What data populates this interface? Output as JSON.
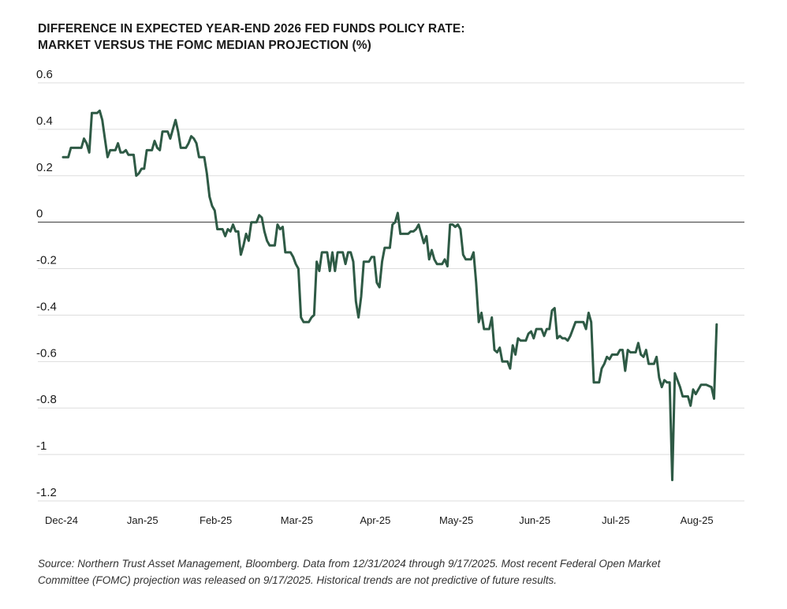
{
  "title_lines": [
    "DIFFERENCE IN EXPECTED YEAR-END 2026 FED FUNDS POLICY RATE:",
    "MARKET VERSUS THE FOMC MEDIAN PROJECTION (%)"
  ],
  "source_lines": [
    "Source: Northern Trust Asset Management, Bloomberg. Data from 12/31/2024 through 9/17/2025. Most recent Federal Open Market",
    "Committee (FOMC) projection was released on 9/17/2025. Historical trends are not predictive of future results."
  ],
  "colors": {
    "line": "#2e5a45",
    "grid": "#dddddd",
    "zero_line": "#333333"
  },
  "chart_data": {
    "type": "line",
    "title": "DIFFERENCE IN EXPECTED YEAR-END 2026 FED FUNDS POLICY RATE: MARKET VERSUS THE FOMC MEDIAN PROJECTION (%)",
    "xlabel": "",
    "ylabel": "",
    "ylim": [
      -1.2,
      0.6
    ],
    "yticks": [
      "0.6",
      "0.4",
      "0.2",
      "0",
      "-0.2",
      "-0.4",
      "-0.6",
      "-0.8",
      "-1",
      "-1.2"
    ],
    "ytick_values": [
      0.6,
      0.4,
      0.2,
      0,
      -0.2,
      -0.4,
      -0.6,
      -0.8,
      -1,
      -1.2
    ],
    "xticks": [
      "Dec-24",
      "Jan-25",
      "Feb-25",
      "Mar-25",
      "Apr-25",
      "May-25",
      "Jun-25",
      "Jul-25",
      "Aug-25"
    ],
    "xtick_dates": [
      "2024-12-31",
      "2025-01-31",
      "2025-02-28",
      "2025-03-31",
      "2025-04-30",
      "2025-05-31",
      "2025-06-30",
      "2025-07-31",
      "2025-08-31"
    ],
    "xlim": [
      "2024-12-31",
      "2025-09-17"
    ],
    "grid": true,
    "series": [
      {
        "name": "",
        "points": [
          [
            "2024-12-31",
            0.28
          ],
          [
            "2025-01-01",
            0.28
          ],
          [
            "2025-01-02",
            0.28
          ],
          [
            "2025-01-03",
            0.32
          ],
          [
            "2025-01-05",
            0.32
          ],
          [
            "2025-01-07",
            0.32
          ],
          [
            "2025-01-08",
            0.36
          ],
          [
            "2025-01-09",
            0.34
          ],
          [
            "2025-01-10",
            0.3
          ],
          [
            "2025-01-11",
            0.47
          ],
          [
            "2025-01-12",
            0.47
          ],
          [
            "2025-01-13",
            0.47
          ],
          [
            "2025-01-14",
            0.48
          ],
          [
            "2025-01-15",
            0.44
          ],
          [
            "2025-01-16",
            0.36
          ],
          [
            "2025-01-17",
            0.28
          ],
          [
            "2025-01-18",
            0.31
          ],
          [
            "2025-01-20",
            0.31
          ],
          [
            "2025-01-21",
            0.34
          ],
          [
            "2025-01-22",
            0.3
          ],
          [
            "2025-01-23",
            0.3
          ],
          [
            "2025-01-24",
            0.31
          ],
          [
            "2025-01-25",
            0.29
          ],
          [
            "2025-01-27",
            0.29
          ],
          [
            "2025-01-28",
            0.2
          ],
          [
            "2025-01-29",
            0.21
          ],
          [
            "2025-01-30",
            0.23
          ],
          [
            "2025-01-31",
            0.23
          ],
          [
            "2025-02-01",
            0.31
          ],
          [
            "2025-02-02",
            0.31
          ],
          [
            "2025-02-03",
            0.31
          ],
          [
            "2025-02-04",
            0.35
          ],
          [
            "2025-02-05",
            0.32
          ],
          [
            "2025-02-06",
            0.31
          ],
          [
            "2025-02-07",
            0.39
          ],
          [
            "2025-02-08",
            0.39
          ],
          [
            "2025-02-09",
            0.39
          ],
          [
            "2025-02-10",
            0.36
          ],
          [
            "2025-02-11",
            0.4
          ],
          [
            "2025-02-12",
            0.44
          ],
          [
            "2025-02-13",
            0.39
          ],
          [
            "2025-02-14",
            0.32
          ],
          [
            "2025-02-15",
            0.32
          ],
          [
            "2025-02-16",
            0.32
          ],
          [
            "2025-02-17",
            0.34
          ],
          [
            "2025-02-18",
            0.37
          ],
          [
            "2025-02-19",
            0.36
          ],
          [
            "2025-02-20",
            0.34
          ],
          [
            "2025-02-21",
            0.28
          ],
          [
            "2025-02-23",
            0.28
          ],
          [
            "2025-02-24",
            0.21
          ],
          [
            "2025-02-25",
            0.11
          ],
          [
            "2025-02-26",
            0.07
          ],
          [
            "2025-02-27",
            0.05
          ],
          [
            "2025-02-28",
            -0.03
          ],
          [
            "2025-03-01",
            -0.03
          ],
          [
            "2025-03-02",
            -0.03
          ],
          [
            "2025-03-03",
            -0.06
          ],
          [
            "2025-03-04",
            -0.03
          ],
          [
            "2025-03-05",
            -0.04
          ],
          [
            "2025-03-06",
            -0.01
          ],
          [
            "2025-03-07",
            -0.04
          ],
          [
            "2025-03-08",
            -0.04
          ],
          [
            "2025-03-09",
            -0.14
          ],
          [
            "2025-03-10",
            -0.1
          ],
          [
            "2025-03-11",
            -0.05
          ],
          [
            "2025-03-12",
            -0.08
          ],
          [
            "2025-03-13",
            0.0
          ],
          [
            "2025-03-14",
            0.0
          ],
          [
            "2025-03-15",
            0.0
          ],
          [
            "2025-03-16",
            0.03
          ],
          [
            "2025-03-17",
            0.02
          ],
          [
            "2025-03-18",
            -0.04
          ],
          [
            "2025-03-19",
            -0.08
          ],
          [
            "2025-03-20",
            -0.1
          ],
          [
            "2025-03-21",
            -0.1
          ],
          [
            "2025-03-22",
            -0.1
          ],
          [
            "2025-03-23",
            -0.01
          ],
          [
            "2025-03-24",
            -0.03
          ],
          [
            "2025-03-25",
            -0.02
          ],
          [
            "2025-03-26",
            -0.13
          ],
          [
            "2025-03-27",
            -0.13
          ],
          [
            "2025-03-28",
            -0.13
          ],
          [
            "2025-03-29",
            -0.15
          ],
          [
            "2025-03-30",
            -0.18
          ],
          [
            "2025-03-31",
            -0.2
          ],
          [
            "2025-04-01",
            -0.41
          ],
          [
            "2025-04-02",
            -0.43
          ],
          [
            "2025-04-03",
            -0.43
          ],
          [
            "2025-04-04",
            -0.43
          ],
          [
            "2025-04-05",
            -0.41
          ],
          [
            "2025-04-06",
            -0.4
          ],
          [
            "2025-04-07",
            -0.17
          ],
          [
            "2025-04-08",
            -0.21
          ],
          [
            "2025-04-09",
            -0.13
          ],
          [
            "2025-04-10",
            -0.13
          ],
          [
            "2025-04-11",
            -0.13
          ],
          [
            "2025-04-12",
            -0.21
          ],
          [
            "2025-04-13",
            -0.13
          ],
          [
            "2025-04-14",
            -0.21
          ],
          [
            "2025-04-15",
            -0.13
          ],
          [
            "2025-04-16",
            -0.13
          ],
          [
            "2025-04-17",
            -0.13
          ],
          [
            "2025-04-18",
            -0.18
          ],
          [
            "2025-04-19",
            -0.13
          ],
          [
            "2025-04-20",
            -0.13
          ],
          [
            "2025-04-21",
            -0.17
          ],
          [
            "2025-04-22",
            -0.34
          ],
          [
            "2025-04-23",
            -0.41
          ],
          [
            "2025-04-24",
            -0.32
          ],
          [
            "2025-04-25",
            -0.17
          ],
          [
            "2025-04-26",
            -0.17
          ],
          [
            "2025-04-27",
            -0.17
          ],
          [
            "2025-04-28",
            -0.15
          ],
          [
            "2025-04-29",
            -0.15
          ],
          [
            "2025-04-30",
            -0.26
          ],
          [
            "2025-05-01",
            -0.28
          ],
          [
            "2025-05-02",
            -0.17
          ],
          [
            "2025-05-03",
            -0.11
          ],
          [
            "2025-05-04",
            -0.11
          ],
          [
            "2025-05-05",
            -0.11
          ],
          [
            "2025-05-06",
            -0.01
          ],
          [
            "2025-05-07",
            0.0
          ],
          [
            "2025-05-08",
            0.04
          ],
          [
            "2025-05-09",
            -0.05
          ],
          [
            "2025-05-10",
            -0.05
          ],
          [
            "2025-05-11",
            -0.05
          ],
          [
            "2025-05-12",
            -0.05
          ],
          [
            "2025-05-13",
            -0.04
          ],
          [
            "2025-05-14",
            -0.04
          ],
          [
            "2025-05-15",
            -0.03
          ],
          [
            "2025-05-16",
            -0.01
          ],
          [
            "2025-05-17",
            -0.05
          ],
          [
            "2025-05-18",
            -0.09
          ],
          [
            "2025-05-19",
            -0.06
          ],
          [
            "2025-05-20",
            -0.16
          ],
          [
            "2025-05-21",
            -0.12
          ],
          [
            "2025-05-22",
            -0.16
          ],
          [
            "2025-05-23",
            -0.18
          ],
          [
            "2025-05-24",
            -0.18
          ],
          [
            "2025-05-25",
            -0.18
          ],
          [
            "2025-05-26",
            -0.16
          ],
          [
            "2025-05-27",
            -0.19
          ],
          [
            "2025-05-28",
            -0.01
          ],
          [
            "2025-05-29",
            -0.01
          ],
          [
            "2025-05-30",
            -0.02
          ],
          [
            "2025-05-31",
            -0.01
          ],
          [
            "2025-06-01",
            -0.03
          ],
          [
            "2025-06-02",
            -0.14
          ],
          [
            "2025-06-03",
            -0.16
          ],
          [
            "2025-06-04",
            -0.16
          ],
          [
            "2025-06-05",
            -0.16
          ],
          [
            "2025-06-06",
            -0.13
          ],
          [
            "2025-06-07",
            -0.26
          ],
          [
            "2025-06-08",
            -0.43
          ],
          [
            "2025-06-09",
            -0.39
          ],
          [
            "2025-06-10",
            -0.46
          ],
          [
            "2025-06-11",
            -0.46
          ],
          [
            "2025-06-12",
            -0.46
          ],
          [
            "2025-06-13",
            -0.41
          ],
          [
            "2025-06-14",
            -0.55
          ],
          [
            "2025-06-15",
            -0.56
          ],
          [
            "2025-06-16",
            -0.54
          ],
          [
            "2025-06-17",
            -0.6
          ],
          [
            "2025-06-18",
            -0.6
          ],
          [
            "2025-06-19",
            -0.6
          ],
          [
            "2025-06-20",
            -0.63
          ],
          [
            "2025-06-21",
            -0.53
          ],
          [
            "2025-06-22",
            -0.57
          ],
          [
            "2025-06-23",
            -0.5
          ],
          [
            "2025-06-24",
            -0.51
          ],
          [
            "2025-06-25",
            -0.51
          ],
          [
            "2025-06-26",
            -0.51
          ],
          [
            "2025-06-27",
            -0.48
          ],
          [
            "2025-06-28",
            -0.47
          ],
          [
            "2025-06-29",
            -0.5
          ],
          [
            "2025-06-30",
            -0.46
          ],
          [
            "2025-07-01",
            -0.46
          ],
          [
            "2025-07-02",
            -0.46
          ],
          [
            "2025-07-03",
            -0.49
          ],
          [
            "2025-07-04",
            -0.46
          ],
          [
            "2025-07-05",
            -0.46
          ],
          [
            "2025-07-06",
            -0.38
          ],
          [
            "2025-07-07",
            -0.37
          ],
          [
            "2025-07-08",
            -0.5
          ],
          [
            "2025-07-09",
            -0.49
          ],
          [
            "2025-07-10",
            -0.5
          ],
          [
            "2025-07-11",
            -0.5
          ],
          [
            "2025-07-12",
            -0.51
          ],
          [
            "2025-07-13",
            -0.49
          ],
          [
            "2025-07-14",
            -0.46
          ],
          [
            "2025-07-15",
            -0.43
          ],
          [
            "2025-07-16",
            -0.43
          ],
          [
            "2025-07-17",
            -0.43
          ],
          [
            "2025-07-18",
            -0.43
          ],
          [
            "2025-07-19",
            -0.46
          ],
          [
            "2025-07-20",
            -0.39
          ],
          [
            "2025-07-21",
            -0.43
          ],
          [
            "2025-07-22",
            -0.69
          ],
          [
            "2025-07-23",
            -0.69
          ],
          [
            "2025-07-24",
            -0.69
          ],
          [
            "2025-07-25",
            -0.63
          ],
          [
            "2025-07-26",
            -0.61
          ],
          [
            "2025-07-27",
            -0.58
          ],
          [
            "2025-07-28",
            -0.59
          ],
          [
            "2025-07-29",
            -0.57
          ],
          [
            "2025-07-30",
            -0.57
          ],
          [
            "2025-07-31",
            -0.57
          ],
          [
            "2025-08-01",
            -0.55
          ],
          [
            "2025-08-02",
            -0.55
          ],
          [
            "2025-08-03",
            -0.64
          ],
          [
            "2025-08-04",
            -0.55
          ],
          [
            "2025-08-05",
            -0.56
          ],
          [
            "2025-08-06",
            -0.56
          ],
          [
            "2025-08-07",
            -0.56
          ],
          [
            "2025-08-08",
            -0.52
          ],
          [
            "2025-08-09",
            -0.57
          ],
          [
            "2025-08-10",
            -0.58
          ],
          [
            "2025-08-11",
            -0.55
          ],
          [
            "2025-08-12",
            -0.61
          ],
          [
            "2025-08-13",
            -0.61
          ],
          [
            "2025-08-14",
            -0.61
          ],
          [
            "2025-08-15",
            -0.58
          ],
          [
            "2025-08-16",
            -0.67
          ],
          [
            "2025-08-17",
            -0.71
          ],
          [
            "2025-08-18",
            -0.68
          ],
          [
            "2025-08-19",
            -0.69
          ],
          [
            "2025-08-20",
            -0.69
          ],
          [
            "2025-08-21",
            -1.11
          ],
          [
            "2025-08-22",
            -0.65
          ],
          [
            "2025-08-23",
            -0.68
          ],
          [
            "2025-08-24",
            -0.71
          ],
          [
            "2025-08-25",
            -0.75
          ],
          [
            "2025-08-26",
            -0.75
          ],
          [
            "2025-08-27",
            -0.75
          ],
          [
            "2025-08-28",
            -0.79
          ],
          [
            "2025-08-29",
            -0.72
          ],
          [
            "2025-08-30",
            -0.74
          ],
          [
            "2025-08-31",
            -0.72
          ],
          [
            "2025-09-01",
            -0.7
          ],
          [
            "2025-09-03",
            -0.7
          ],
          [
            "2025-09-05",
            -0.71
          ],
          [
            "2025-09-06",
            -0.76
          ],
          [
            "2025-09-07",
            -0.44
          ]
        ]
      }
    ]
  }
}
